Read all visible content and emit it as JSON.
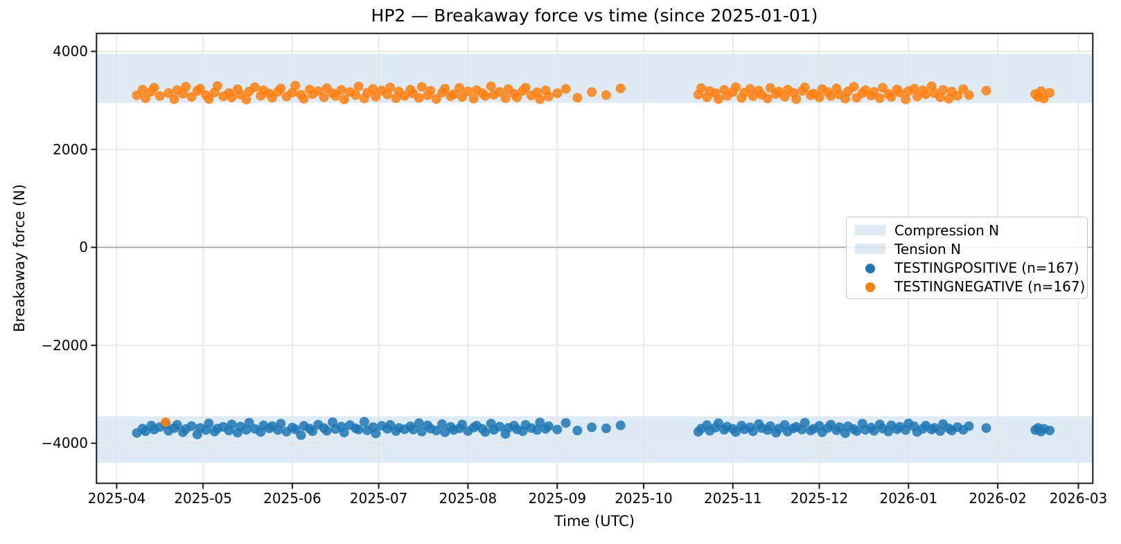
{
  "chart_data": {
    "type": "scatter",
    "title": "HP2 — Breakaway force vs time (since 2025-01-01)",
    "xlabel": "Time (UTC)",
    "ylabel": "Breakaway force (N)",
    "grid": true,
    "legend_position": "center right",
    "x_axis": {
      "epoch": "2025-01-01",
      "unit": "days since 2025-01-01",
      "lim": [
        83,
        429
      ],
      "ticks": [
        {
          "label": "2025-04",
          "day": 90
        },
        {
          "label": "2025-05",
          "day": 120
        },
        {
          "label": "2025-06",
          "day": 151
        },
        {
          "label": "2025-07",
          "day": 181
        },
        {
          "label": "2025-08",
          "day": 212
        },
        {
          "label": "2025-09",
          "day": 243
        },
        {
          "label": "2025-10",
          "day": 273
        },
        {
          "label": "2025-11",
          "day": 304
        },
        {
          "label": "2025-12",
          "day": 334
        },
        {
          "label": "2026-01",
          "day": 365
        },
        {
          "label": "2026-02",
          "day": 396
        },
        {
          "label": "2026-03",
          "day": 424
        }
      ]
    },
    "y_axis": {
      "lim": [
        -4817.5,
        4367.5
      ],
      "ticks": [
        {
          "label": "4000",
          "value": 4000
        },
        {
          "label": "2000",
          "value": 2000
        },
        {
          "label": "0",
          "value": 0
        },
        {
          "label": "−2000",
          "value": -2000
        },
        {
          "label": "−4000",
          "value": -4000
        }
      ]
    },
    "bands": [
      {
        "name": "Compression N",
        "from": 2950,
        "to": 3950,
        "color": "rgba(31,119,180,0.15)"
      },
      {
        "name": "Tension N",
        "from": -4400,
        "to": -3450,
        "color": "rgba(31,119,180,0.15)"
      }
    ],
    "x_days": [
      97,
      99,
      100,
      102,
      103,
      105,
      107,
      108,
      110,
      111,
      113,
      114,
      116,
      118,
      119,
      121,
      122,
      124,
      125,
      127,
      129,
      130,
      132,
      133,
      135,
      136,
      138,
      140,
      141,
      143,
      144,
      146,
      147,
      149,
      151,
      152,
      154,
      155,
      157,
      158,
      160,
      162,
      163,
      165,
      166,
      168,
      169,
      171,
      173,
      174,
      176,
      177,
      179,
      180,
      182,
      184,
      185,
      187,
      188,
      190,
      192,
      193,
      195,
      196,
      198,
      199,
      201,
      203,
      204,
      206,
      207,
      209,
      210,
      212,
      214,
      215,
      217,
      218,
      220,
      221,
      223,
      225,
      226,
      228,
      229,
      231,
      232,
      234,
      236,
      237,
      239,
      240,
      243,
      246,
      250,
      255,
      260,
      265,
      292,
      293,
      295,
      296,
      298,
      299,
      301,
      302,
      304,
      305,
      307,
      308,
      310,
      311,
      313,
      314,
      316,
      317,
      319,
      320,
      322,
      323,
      325,
      326,
      328,
      329,
      331,
      332,
      334,
      335,
      337,
      338,
      340,
      341,
      343,
      344,
      346,
      347,
      349,
      350,
      352,
      353,
      355,
      356,
      358,
      359,
      361,
      362,
      364,
      365,
      367,
      368,
      370,
      371,
      373,
      374,
      376,
      377,
      379,
      380,
      382,
      384,
      386,
      392,
      409,
      410,
      411,
      412,
      414
    ],
    "series": [
      {
        "name": "TESTINGPOSITIVE (n=167)",
        "n": 167,
        "color": "#1f77b4",
        "values": [
          -3790,
          -3700,
          -3755,
          -3640,
          -3720,
          -3670,
          -3605,
          -3745,
          -3690,
          -3625,
          -3775,
          -3710,
          -3650,
          -3820,
          -3685,
          -3730,
          -3595,
          -3760,
          -3700,
          -3665,
          -3740,
          -3615,
          -3785,
          -3660,
          -3725,
          -3580,
          -3705,
          -3770,
          -3635,
          -3695,
          -3650,
          -3730,
          -3600,
          -3765,
          -3680,
          -3715,
          -3835,
          -3645,
          -3700,
          -3755,
          -3620,
          -3690,
          -3745,
          -3570,
          -3710,
          -3660,
          -3780,
          -3630,
          -3695,
          -3720,
          -3560,
          -3735,
          -3670,
          -3800,
          -3645,
          -3705,
          -3625,
          -3750,
          -3685,
          -3715,
          -3655,
          -3720,
          -3590,
          -3760,
          -3635,
          -3700,
          -3740,
          -3610,
          -3775,
          -3665,
          -3730,
          -3695,
          -3615,
          -3750,
          -3680,
          -3640,
          -3705,
          -3770,
          -3600,
          -3725,
          -3660,
          -3810,
          -3685,
          -3640,
          -3715,
          -3755,
          -3625,
          -3690,
          -3730,
          -3575,
          -3705,
          -3650,
          -3720,
          -3585,
          -3740,
          -3675,
          -3695,
          -3635,
          -3765,
          -3700,
          -3630,
          -3745,
          -3680,
          -3590,
          -3725,
          -3660,
          -3705,
          -3770,
          -3640,
          -3715,
          -3675,
          -3755,
          -3610,
          -3690,
          -3730,
          -3650,
          -3785,
          -3700,
          -3625,
          -3760,
          -3695,
          -3665,
          -3720,
          -3580,
          -3740,
          -3705,
          -3645,
          -3775,
          -3690,
          -3620,
          -3735,
          -3670,
          -3795,
          -3655,
          -3710,
          -3750,
          -3600,
          -3725,
          -3680,
          -3745,
          -3615,
          -3700,
          -3760,
          -3635,
          -3715,
          -3665,
          -3730,
          -3595,
          -3655,
          -3770,
          -3705,
          -3640,
          -3720,
          -3685,
          -3750,
          -3610,
          -3695,
          -3740,
          -3670,
          -3725,
          -3650,
          -3690,
          -3730,
          -3685,
          -3760,
          -3705,
          -3740
        ]
      },
      {
        "name": "TESTINGNEGATIVE (n=167)",
        "n": 167,
        "color": "#ff7f0e",
        "values": [
          3105,
          3220,
          3045,
          3180,
          3260,
          3090,
          -3570,
          3150,
          3025,
          3210,
          3135,
          3280,
          3070,
          3195,
          3240,
          3110,
          3030,
          3165,
          3295,
          3085,
          3150,
          3060,
          3230,
          3120,
          3020,
          3185,
          3270,
          3095,
          3205,
          3140,
          3055,
          3175,
          3245,
          3080,
          3160,
          3300,
          3115,
          3035,
          3225,
          3130,
          3190,
          3065,
          3250,
          3145,
          3090,
          3215,
          3020,
          3170,
          3110,
          3285,
          3040,
          3155,
          3235,
          3075,
          3200,
          3120,
          3265,
          3045,
          3180,
          3095,
          3220,
          3140,
          3050,
          3275,
          3105,
          3195,
          3030,
          3160,
          3240,
          3085,
          3125,
          3255,
          3070,
          3185,
          3035,
          3210,
          3150,
          3090,
          3290,
          3115,
          3175,
          3045,
          3230,
          3135,
          3060,
          3195,
          3260,
          3100,
          3165,
          3025,
          3205,
          3080,
          3145,
          3235,
          3055,
          3170,
          3110,
          3245,
          3120,
          3250,
          3065,
          3190,
          3145,
          3030,
          3215,
          3095,
          3170,
          3270,
          3050,
          3160,
          3235,
          3085,
          3200,
          3115,
          3040,
          3255,
          3130,
          3180,
          3075,
          3220,
          3155,
          3025,
          3195,
          3265,
          3105,
          3140,
          3060,
          3230,
          3170,
          3090,
          3245,
          3120,
          3035,
          3185,
          3280,
          3055,
          3150,
          3210,
          3100,
          3175,
          3045,
          3260,
          3135,
          3070,
          3225,
          3160,
          3020,
          3190,
          3240,
          3080,
          3205,
          3125,
          3290,
          3150,
          3065,
          3215,
          3035,
          3180,
          3095,
          3230,
          3110,
          3200,
          3130,
          3070,
          3190,
          3040,
          3155
        ]
      }
    ]
  }
}
